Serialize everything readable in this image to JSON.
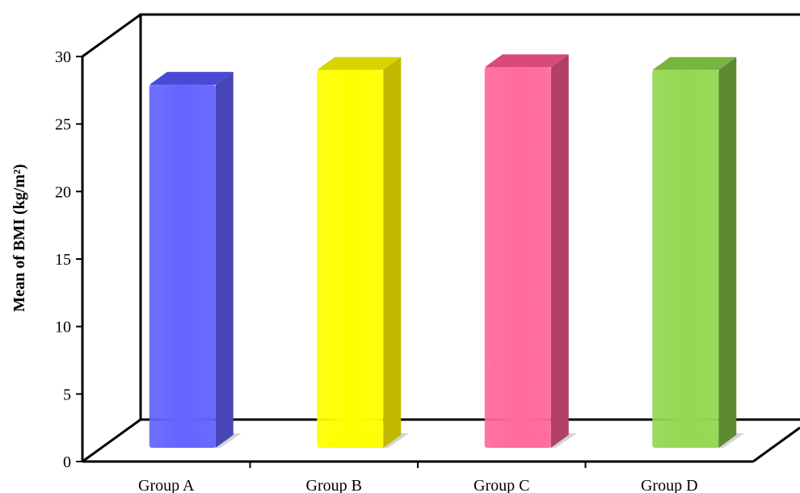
{
  "chart_data": {
    "type": "bar",
    "style": "3d-column",
    "categories": [
      "Group A",
      "Group B",
      "Group C",
      "Group D"
    ],
    "values": [
      27.6,
      28.7,
      28.9,
      28.7
    ],
    "title": "",
    "xlabel": "",
    "ylabel": "Mean of BMI (kg/m²)",
    "ylim": [
      0,
      30
    ],
    "yticks": [
      "0",
      "5",
      "10",
      "15",
      "20",
      "25",
      "30"
    ],
    "grid": false,
    "legend": "none",
    "colors": [
      {
        "front": "#6464ff",
        "side": "#4646b4",
        "top": "#4a4ad8"
      },
      {
        "front": "#ffff00",
        "side": "#c2b800",
        "top": "#d8d400"
      },
      {
        "front": "#ff6a9a",
        "side": "#b04068",
        "top": "#d84a78"
      },
      {
        "front": "#94d852",
        "side": "#5e8a32",
        "top": "#76b63e"
      }
    ]
  }
}
